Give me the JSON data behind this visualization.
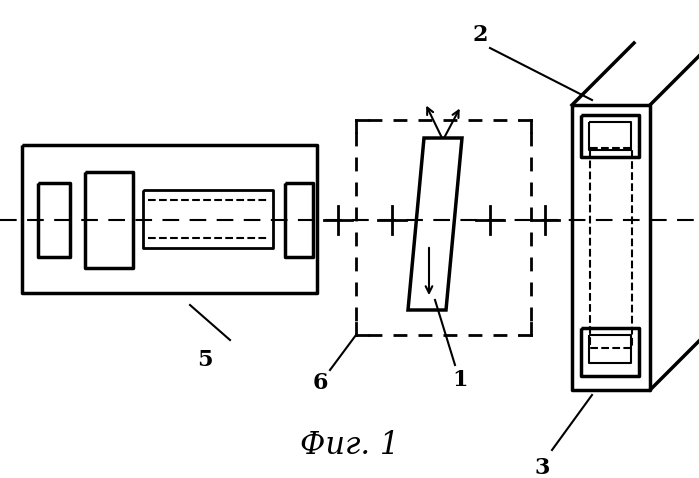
{
  "fig_width": 6.99,
  "fig_height": 4.78,
  "dpi": 100,
  "bg_color": "#ffffff",
  "line_color": "#000000",
  "caption": "Фиг. 1",
  "caption_fontsize": 22
}
